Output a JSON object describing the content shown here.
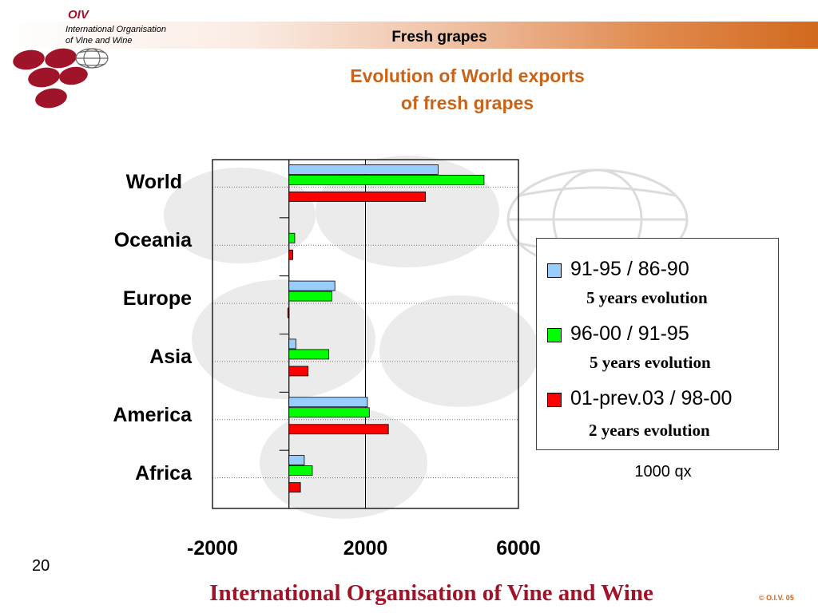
{
  "header": {
    "logo_text": "OIV",
    "org_line1": "International Organisation",
    "org_line2": "of  Vine  and  Wine",
    "section_title": "Fresh grapes"
  },
  "chart_title_line1": "Evolution of World exports",
  "chart_title_line2": "of fresh grapes",
  "legend": [
    {
      "label": "91-95 / 86-90",
      "sub": "5 years evolution",
      "color": "#99ccff"
    },
    {
      "label": "96-00 / 91-95",
      "sub": "5 years evolution",
      "color": "#00ff00"
    },
    {
      "label": "01-prev.03 / 98-00",
      "sub": "2 years evolution",
      "color": "#ff0000"
    }
  ],
  "unit": "1000 qx",
  "page_number": "20",
  "footer": "International Organisation of Vine and Wine",
  "copyright": "© O.I.V. 05",
  "chart_data": {
    "type": "bar",
    "orientation": "horizontal",
    "categories": [
      "World",
      "Oceania",
      "Europe",
      "Asia",
      "America",
      "Africa"
    ],
    "series": [
      {
        "name": "91-95 / 86-90",
        "values": [
          3900,
          0,
          1200,
          180,
          2050,
          400
        ]
      },
      {
        "name": "96-00 / 91-95",
        "values": [
          5100,
          150,
          1120,
          1040,
          2100,
          610
        ]
      },
      {
        "name": "01-prev.03 / 98-00",
        "values": [
          3570,
          100,
          -30,
          500,
          2600,
          300
        ]
      }
    ],
    "x_ticks": [
      "-2000",
      "2000",
      "6000"
    ],
    "xlim": [
      -2000,
      6000
    ],
    "grid": true,
    "legend_position": "right",
    "colors": [
      "#99ccff",
      "#00ff00",
      "#ff0000"
    ]
  }
}
